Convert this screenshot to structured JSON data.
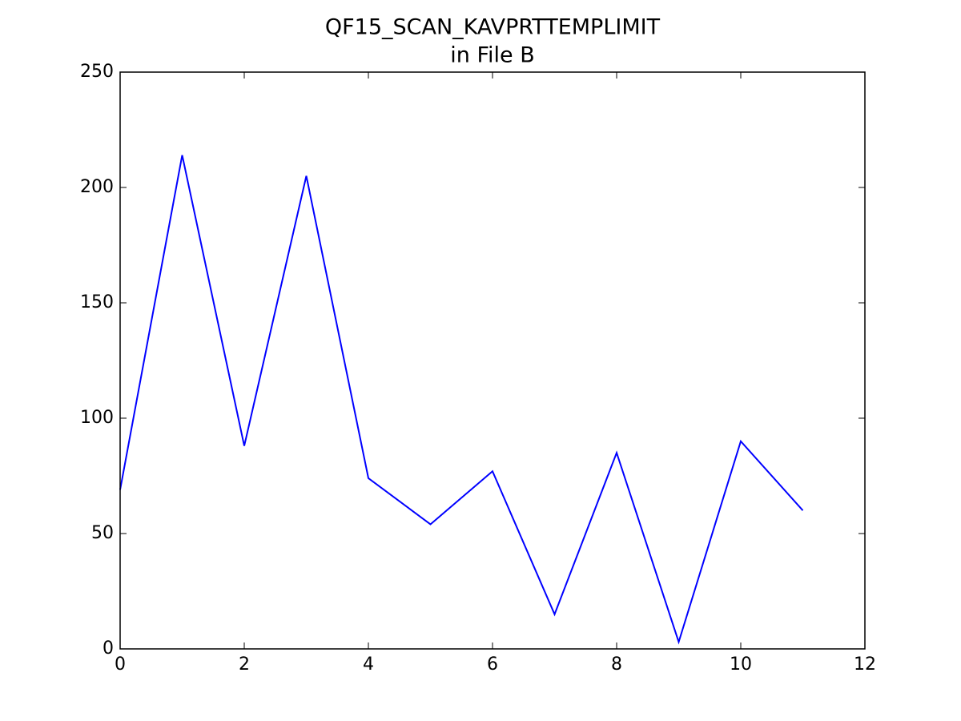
{
  "chart_data": {
    "type": "line",
    "title": "QF15_SCAN_KAVPRTTEMPLIMIT",
    "subtitle": "in File B",
    "x": [
      0,
      1,
      2,
      3,
      4,
      5,
      6,
      7,
      8,
      9,
      10,
      11
    ],
    "series": [
      {
        "color": "#0000ff",
        "values": [
          69,
          214,
          88,
          205,
          74,
          54,
          77,
          15,
          85,
          3,
          90,
          60
        ]
      }
    ],
    "xlim": [
      0,
      12
    ],
    "xticks": [
      0,
      2,
      4,
      6,
      8,
      10,
      12
    ],
    "ylim": [
      0,
      250
    ],
    "yticks": [
      0,
      50,
      100,
      150,
      200,
      250
    ],
    "grid": false
  }
}
